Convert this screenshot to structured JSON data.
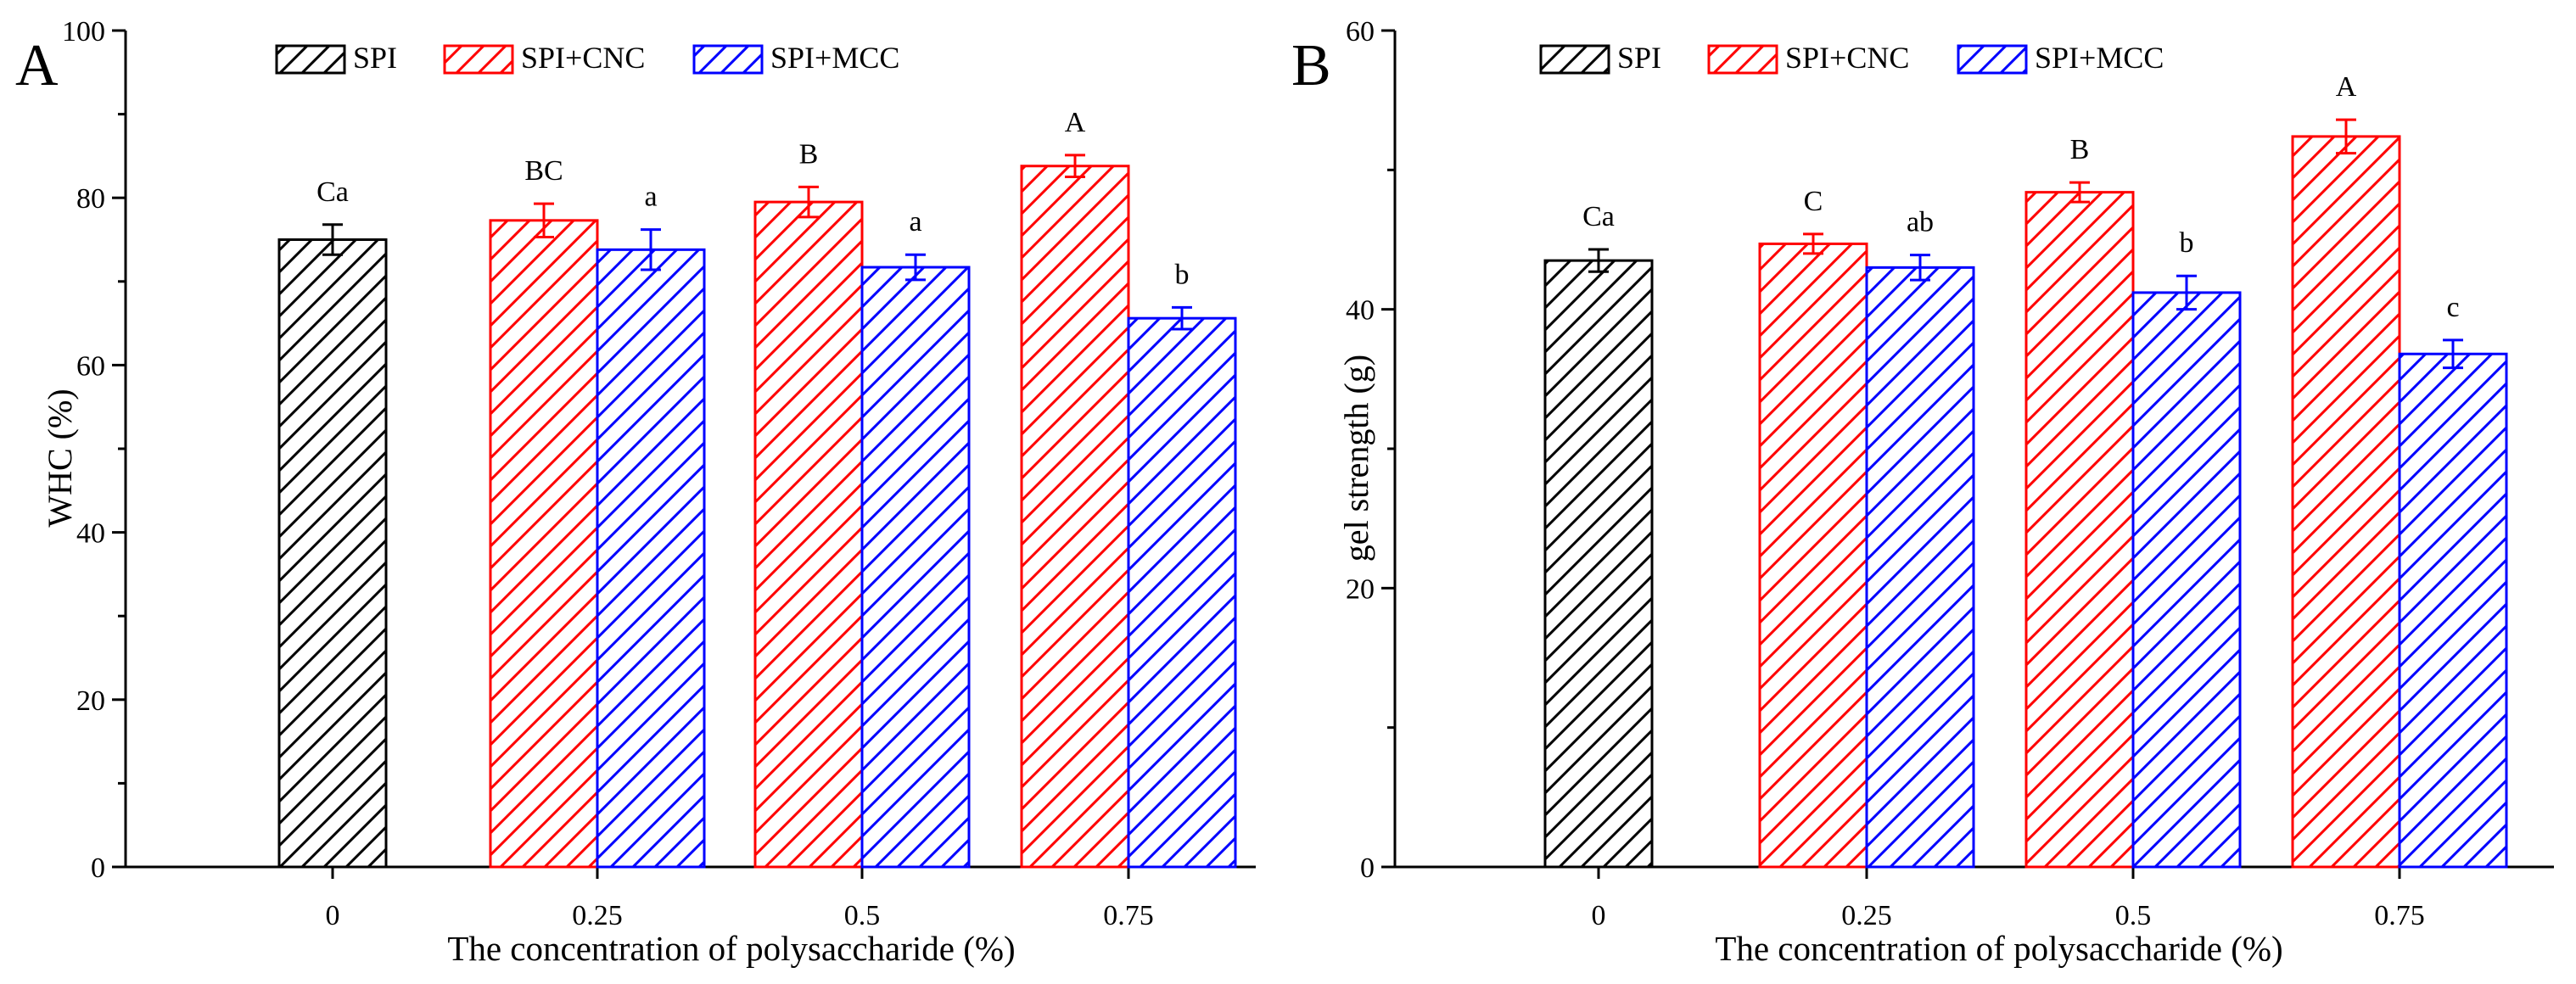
{
  "figure": {
    "x_axis_label": "The concentration of polysaccharide (%)",
    "legend": [
      "SPI",
      "SPI+CNC",
      "SPI+MCC"
    ],
    "colors": {
      "SPI": "#000000",
      "SPI+CNC": "#ff0000",
      "SPI+MCC": "#0000ff"
    }
  },
  "chart_data": [
    {
      "type": "bar",
      "panel_label": "A",
      "title": "",
      "xlabel": "The concentration of polysaccharide (%)",
      "ylabel": "WHC (%)",
      "ylim": [
        0,
        100
      ],
      "yticks": [
        0,
        20,
        40,
        60,
        80,
        100
      ],
      "categories": [
        "0",
        "0.25",
        "0.5",
        "0.75"
      ],
      "legend_position": "top",
      "series": [
        {
          "name": "SPI",
          "values": [
            75,
            null,
            null,
            null
          ],
          "errors": [
            1.8,
            null,
            null,
            null
          ],
          "annotations": [
            "Ca",
            null,
            null,
            null
          ]
        },
        {
          "name": "SPI+CNC",
          "values": [
            null,
            77.3,
            79.5,
            83.8
          ],
          "errors": [
            null,
            2.0,
            1.8,
            1.3
          ],
          "annotations": [
            null,
            "BC",
            "B",
            "A"
          ]
        },
        {
          "name": "SPI+MCC",
          "values": [
            null,
            73.8,
            71.7,
            65.6
          ],
          "errors": [
            null,
            2.4,
            1.5,
            1.3
          ],
          "annotations": [
            null,
            "a",
            "a",
            "b"
          ]
        }
      ]
    },
    {
      "type": "bar",
      "panel_label": "B",
      "title": "",
      "xlabel": "The concentration of polysaccharide (%)",
      "ylabel": "gel strength (g)",
      "ylim": [
        0,
        60
      ],
      "yticks": [
        0,
        20,
        40,
        60
      ],
      "categories": [
        "0",
        "0.25",
        "0.5",
        "0.75"
      ],
      "legend_position": "top",
      "series": [
        {
          "name": "SPI",
          "values": [
            43.5,
            null,
            null,
            null
          ],
          "errors": [
            0.8,
            null,
            null,
            null
          ],
          "annotations": [
            "Ca",
            null,
            null,
            null
          ]
        },
        {
          "name": "SPI+CNC",
          "values": [
            null,
            44.7,
            48.4,
            52.4
          ],
          "errors": [
            null,
            0.7,
            0.7,
            1.2
          ],
          "annotations": [
            null,
            "C",
            "B",
            "A"
          ]
        },
        {
          "name": "SPI+MCC",
          "values": [
            null,
            43.0,
            41.2,
            36.8
          ],
          "errors": [
            null,
            0.9,
            1.2,
            1.0
          ],
          "annotations": [
            null,
            "ab",
            "b",
            "c"
          ]
        }
      ]
    }
  ]
}
